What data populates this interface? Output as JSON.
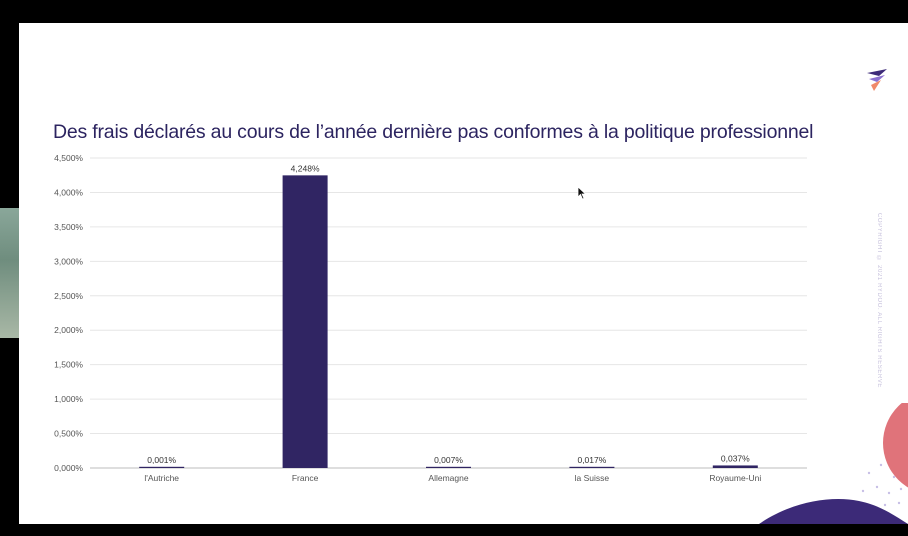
{
  "slide": {
    "title": "Des frais déclarés au cours de l’année dernière pas conformes à la politique professionnel",
    "copyright": "COPYRIGHT © 2021 RYDOO. ALL RIGHTS RESERVED"
  },
  "colors": {
    "bar": "#302563",
    "title": "#2c2460",
    "accent_pink": "#e0737a",
    "accent_purple": "#3c2a78"
  },
  "chart_data": {
    "type": "bar",
    "categories": [
      "l'Autriche",
      "France",
      "Allemagne",
      "la Suisse",
      "Royaume-Uni"
    ],
    "values": [
      0.001,
      4.248,
      0.007,
      0.017,
      0.037
    ],
    "value_labels": [
      "0,001%",
      "4,248%",
      "0,007%",
      "0,017%",
      "0,037%"
    ],
    "y_ticks": [
      0,
      0.5,
      1,
      1.5,
      2,
      2.5,
      3,
      3.5,
      4,
      4.5
    ],
    "y_tick_labels": [
      "0,000%",
      "0,500%",
      "1,000%",
      "1,500%",
      "2,000%",
      "2,500%",
      "3,000%",
      "3,500%",
      "4,000%",
      "4,500%"
    ],
    "ylim": [
      0,
      4.5
    ],
    "grid": true,
    "legend": "none"
  }
}
